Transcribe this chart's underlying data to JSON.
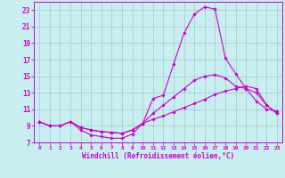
{
  "xlabel": "Windchill (Refroidissement éolien,°C)",
  "bg_color": "#c8eef0",
  "grid_color": "#a0c8cc",
  "line_color": "#cc00cc",
  "x": [
    0,
    1,
    2,
    3,
    4,
    5,
    6,
    7,
    8,
    9,
    10,
    11,
    12,
    13,
    14,
    15,
    16,
    17,
    18,
    19,
    20,
    21,
    22,
    23
  ],
  "line1": [
    9.5,
    9.0,
    9.0,
    9.5,
    8.5,
    7.9,
    7.7,
    7.5,
    7.5,
    8.0,
    9.3,
    12.3,
    12.7,
    16.5,
    20.2,
    22.5,
    23.4,
    23.1,
    17.2,
    15.3,
    13.5,
    12.0,
    11.0,
    10.8
  ],
  "line2": [
    9.5,
    9.0,
    9.0,
    9.5,
    8.8,
    8.5,
    8.3,
    8.2,
    8.1,
    8.5,
    9.3,
    10.5,
    11.5,
    12.5,
    13.5,
    14.5,
    15.0,
    15.2,
    14.8,
    13.8,
    13.5,
    13.0,
    11.5,
    10.5
  ],
  "line3": [
    9.5,
    9.0,
    9.0,
    9.5,
    8.8,
    8.5,
    8.3,
    8.2,
    8.1,
    8.5,
    9.3,
    9.8,
    10.2,
    10.7,
    11.2,
    11.7,
    12.2,
    12.8,
    13.2,
    13.5,
    13.8,
    13.5,
    11.5,
    10.5
  ],
  "ylim_min": 7,
  "ylim_max": 24,
  "xlim_min": -0.5,
  "xlim_max": 23.5,
  "yticks": [
    7,
    9,
    11,
    13,
    15,
    17,
    19,
    21,
    23
  ],
  "xticks": [
    0,
    1,
    2,
    3,
    4,
    5,
    6,
    7,
    8,
    9,
    10,
    11,
    12,
    13,
    14,
    15,
    16,
    17,
    18,
    19,
    20,
    21,
    22,
    23
  ]
}
